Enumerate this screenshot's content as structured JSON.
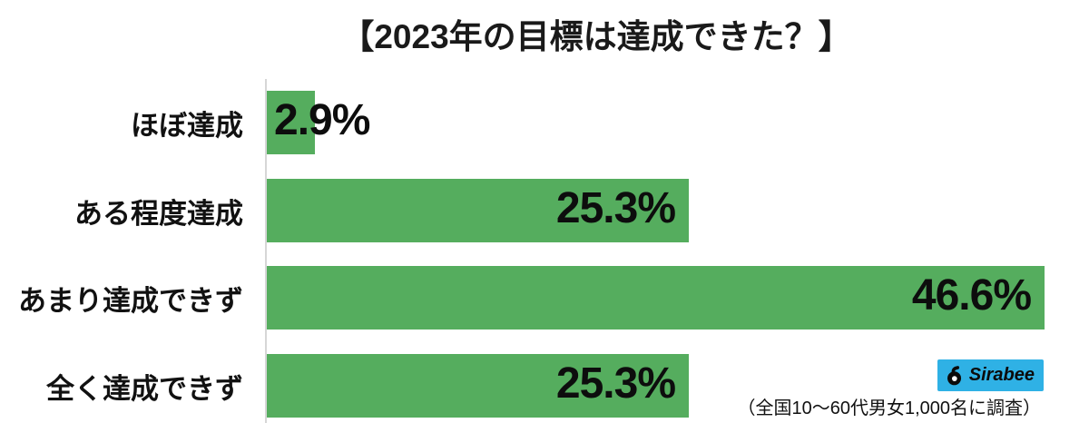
{
  "title": "【2023年の目標は達成できた？】",
  "chart_data": {
    "type": "bar",
    "orientation": "horizontal",
    "title": "【2023年の目標は達成できた？】",
    "categories": [
      "ほぼ達成",
      "ある程度達成",
      "あまり達成できず",
      "全く達成できず"
    ],
    "values": [
      2.9,
      25.3,
      46.6,
      25.3
    ],
    "value_labels": [
      "2.9%",
      "25.3%",
      "46.6%",
      "25.3%"
    ],
    "unit": "%",
    "xlim": [
      0,
      49.3
    ],
    "bar_color": "#55ad5e",
    "axis_color": "#d6d6d6",
    "grid": "off",
    "legend": "none"
  },
  "footer": {
    "logo_text": "Sirabee",
    "logo_bg": "#2fb1e5",
    "caption": "（全国10〜60代男女1,000名に調査）"
  }
}
